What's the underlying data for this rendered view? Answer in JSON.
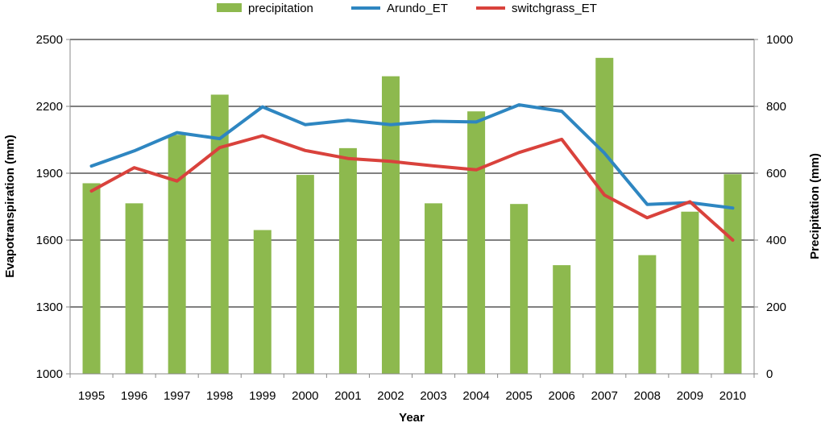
{
  "chart_data": {
    "type": "bar+line",
    "title": "",
    "xlabel": "Year",
    "ylabel_left": "Evapotranspiration (mm)",
    "ylabel_right": "Precipitation (mm)",
    "categories": [
      "1995",
      "1996",
      "1997",
      "1998",
      "1999",
      "2000",
      "2001",
      "2002",
      "2003",
      "2004",
      "2005",
      "2006",
      "2007",
      "2008",
      "2009",
      "2010"
    ],
    "ylim_left": [
      1000,
      2500
    ],
    "yticks_left": [
      "1000",
      "1300",
      "1600",
      "1900",
      "2200",
      "2500"
    ],
    "ylim_right": [
      0,
      1000
    ],
    "yticks_right": [
      "0",
      "200",
      "400",
      "600",
      "800",
      "1000"
    ],
    "grid": true,
    "legend_position": "top",
    "series": [
      {
        "name": "precipitation",
        "kind": "bar",
        "axis": "right",
        "color": "#8DB94E",
        "values": [
          570,
          510,
          715,
          835,
          430,
          595,
          675,
          890,
          510,
          785,
          508,
          325,
          945,
          355,
          485,
          597
        ]
      },
      {
        "name": "Arundo_ET",
        "kind": "line",
        "axis": "left",
        "color": "#2E86C1",
        "values": [
          1932,
          2000,
          2082,
          2055,
          2198,
          2118,
          2138,
          2118,
          2133,
          2130,
          2207,
          2178,
          1990,
          1760,
          1768,
          1744
        ]
      },
      {
        "name": "switchgrass_ET",
        "kind": "line",
        "axis": "left",
        "color": "#D9423C",
        "values": [
          1820,
          1925,
          1865,
          2015,
          2068,
          2002,
          1966,
          1953,
          1933,
          1915,
          1993,
          2052,
          1802,
          1700,
          1772,
          1600
        ]
      }
    ]
  }
}
